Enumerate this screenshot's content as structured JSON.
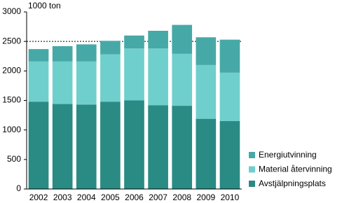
{
  "chart_data": {
    "type": "stacked_bar",
    "y_axis_label": "1000 ton",
    "categories": [
      "2002",
      "2003",
      "2004",
      "2005",
      "2006",
      "2007",
      "2008",
      "2009",
      "2010"
    ],
    "series": [
      {
        "name": "Avstjälpningsplats",
        "color": "#2a8a84",
        "values": [
          1480,
          1440,
          1430,
          1480,
          1500,
          1420,
          1410,
          1190,
          1150
        ]
      },
      {
        "name": "Material återvinning",
        "color": "#6fcfcc",
        "values": [
          680,
          720,
          730,
          800,
          880,
          960,
          880,
          910,
          820
        ]
      },
      {
        "name": "Energiutvinning",
        "color": "#46a9a7",
        "values": [
          210,
          260,
          290,
          230,
          220,
          300,
          490,
          470,
          560
        ]
      }
    ],
    "ylim": [
      0,
      3000
    ],
    "yticks": [
      0,
      500,
      1000,
      1500,
      2000,
      2500,
      3000
    ],
    "dashed_line_at": 2500,
    "legend": "right-bottom"
  }
}
